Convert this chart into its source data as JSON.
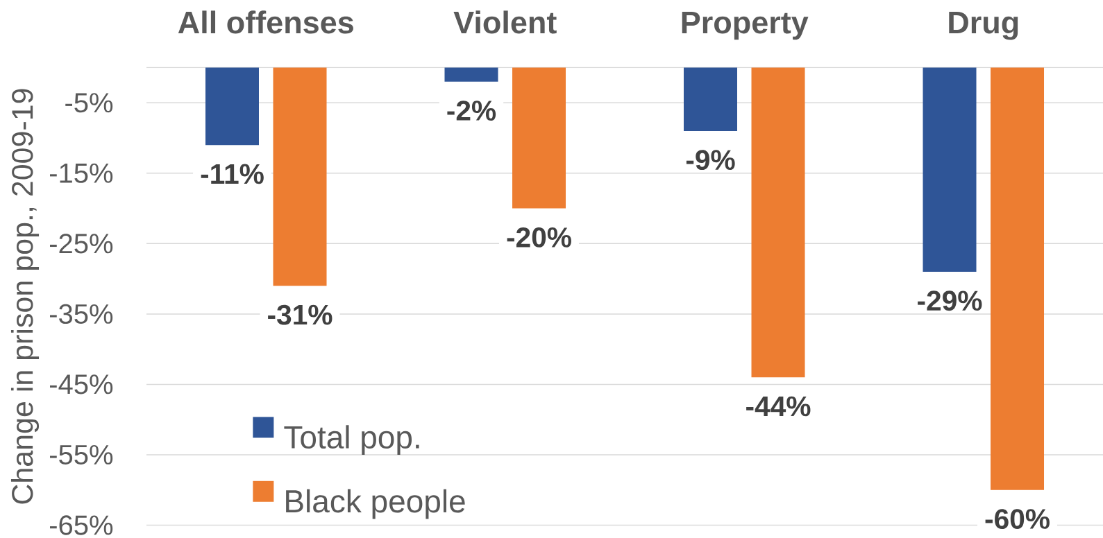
{
  "chart_data": {
    "type": "bar",
    "categories": [
      "All offenses",
      "Violent",
      "Property",
      "Drug"
    ],
    "ylabel": "Change in prison pop., 2009-19",
    "series": [
      {
        "name": "Total pop.",
        "color": "#2f5597",
        "values": [
          -11,
          -2,
          -9,
          -29
        ],
        "value_labels": [
          "-11%",
          "-2%",
          "-9%",
          "-29%"
        ]
      },
      {
        "name": "Black people",
        "color": "#ed7d31",
        "values": [
          -31,
          -20,
          -44,
          -60
        ],
        "value_labels": [
          "-31%",
          "-20%",
          "-44%",
          "-60%"
        ]
      }
    ],
    "ylim": [
      -65,
      0
    ],
    "yticks": [
      {
        "value": -5,
        "label": "-5%"
      },
      {
        "value": -15,
        "label": "-15%"
      },
      {
        "value": -25,
        "label": "-25%"
      },
      {
        "value": -35,
        "label": "-35%"
      },
      {
        "value": -45,
        "label": "-45%"
      },
      {
        "value": -55,
        "label": "-55%"
      },
      {
        "value": -65,
        "label": "-65%"
      }
    ],
    "grid": "y",
    "legend": "bottom left"
  }
}
